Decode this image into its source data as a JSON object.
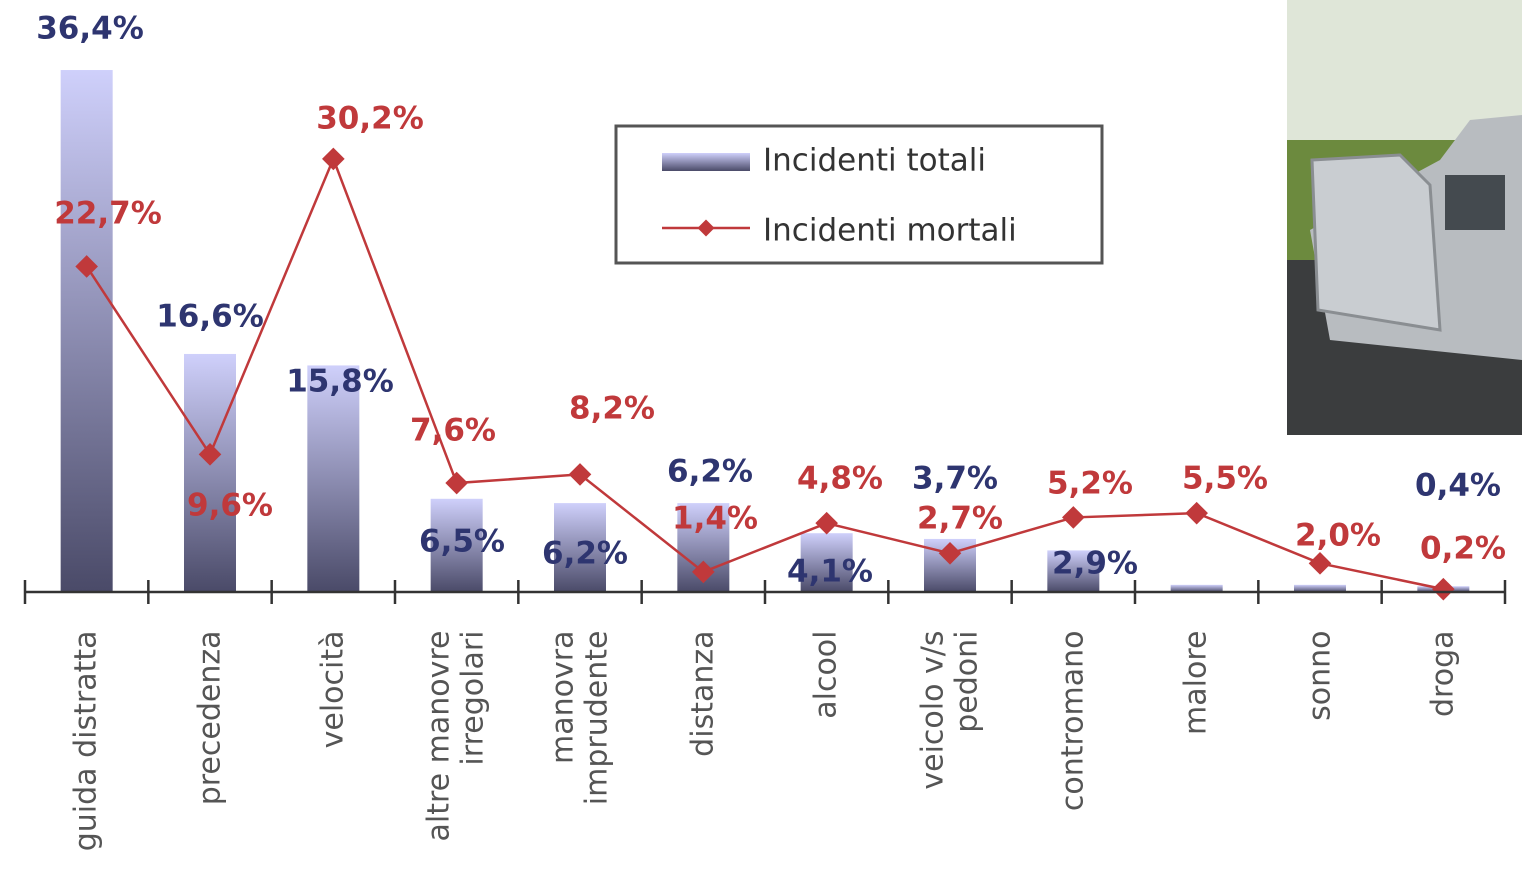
{
  "chart_data": {
    "type": "bar_line",
    "categories": [
      "guida distratta",
      "precedenza",
      "velocità",
      "altre manovre irregolari",
      "manovra imprudente",
      "distanza",
      "alcool",
      "veicolo v/s pedoni",
      "contromano",
      "malore",
      "sonno",
      "droga"
    ],
    "series": [
      {
        "name": "Incidenti totali",
        "type": "bar",
        "color": "#3a3a5c",
        "values": [
          36.4,
          16.6,
          15.8,
          6.5,
          6.2,
          6.2,
          4.1,
          3.7,
          2.9,
          0.5,
          0.5,
          0.4
        ],
        "value_labels": [
          "36,4%",
          "16,6%",
          "15,8%",
          "6,5%",
          "6,2%",
          "6,2%",
          "4,1%",
          "3,7%",
          "2,9%",
          null,
          null,
          "0,4%"
        ]
      },
      {
        "name": "Incidenti mortali",
        "type": "line",
        "color": "#c0393b",
        "values": [
          22.7,
          9.6,
          30.2,
          7.6,
          8.2,
          1.4,
          4.8,
          2.7,
          5.2,
          5.5,
          2.0,
          0.2
        ],
        "value_labels": [
          "22,7%",
          "9,6%",
          "30,2%",
          "7,6%",
          "8,2%",
          "1,4%",
          "4,8%",
          "2,7%",
          "5,2%",
          "5,5%",
          "2,0%",
          "0,2%"
        ]
      }
    ]
  }
}
